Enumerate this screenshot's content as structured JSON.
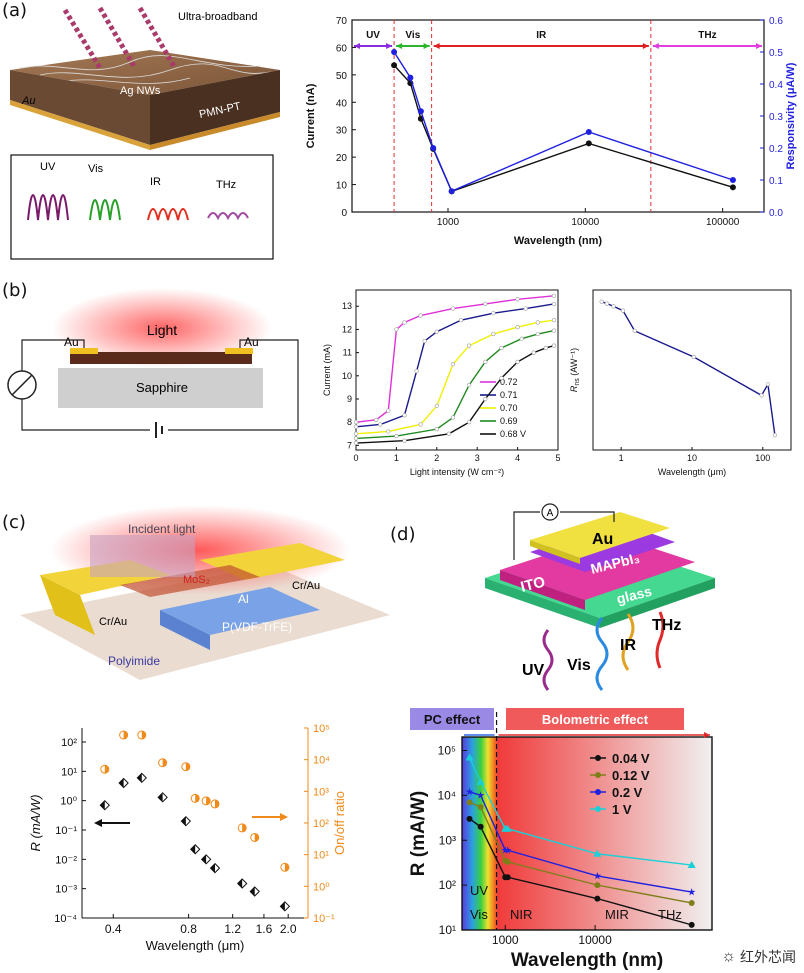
{
  "panel_labels": [
    "(a)",
    "(b)",
    "(c)",
    "(d)"
  ],
  "a_schematic": {
    "beam_label": "Ultra-broadband",
    "layer_top": "Ag NWs",
    "layer_mid": "PMN-PT",
    "layer_bottom": "Au",
    "inset_labels": [
      "UV",
      "Vis",
      "IR",
      "THz"
    ]
  },
  "b_schematic": {
    "light": "Light",
    "substrate": "Sapphire",
    "electrode_left": "Au",
    "electrode_right": "Au"
  },
  "c_schematic": {
    "incident": "Incident light",
    "channel": "MoS₂",
    "gate": "Al",
    "dielectric": "P(VDF-TrFE)",
    "substrate": "Polyimide",
    "contact_left": "Cr/Au",
    "contact_right": "Cr/Au"
  },
  "d_schematic": {
    "top": "Au",
    "perovskite": "MAPbI₃",
    "ito": "ITO",
    "glass": "glass",
    "meter": "A",
    "bands": [
      "UV",
      "Vis",
      "IR",
      "THz"
    ]
  },
  "chart_data": [
    {
      "id": "a",
      "type": "line",
      "xscale": "log",
      "xlabel": "Wavelength (nm)",
      "ylabel": "Current (nA)",
      "y2label": "Responsivity (μA/W)",
      "xlim": [
        200,
        200000
      ],
      "ylim": [
        0,
        70
      ],
      "y2lim": [
        0,
        0.6
      ],
      "xticks": [
        1000,
        10000,
        100000
      ],
      "xticklabels": [
        "1000",
        "10000",
        "100000"
      ],
      "yticks": [
        0,
        10,
        20,
        30,
        40,
        50,
        60,
        70
      ],
      "y2ticks": [
        0.0,
        0.1,
        0.2,
        0.3,
        0.4,
        0.5,
        0.6
      ],
      "y2ticklabels": [
        "0.0",
        "0.1",
        "0.2",
        "0.3",
        "0.4",
        "0.5",
        "0.6"
      ],
      "regions": [
        {
          "label": "UV",
          "from": 200,
          "to": 405,
          "color": "#8a2be2"
        },
        {
          "label": "Vis",
          "from": 405,
          "to": 760,
          "color": "#2db52d"
        },
        {
          "label": "IR",
          "from": 760,
          "to": 30000,
          "color": "#e02020"
        },
        {
          "label": "THz",
          "from": 30000,
          "to": 200000,
          "color": "#e040e0"
        }
      ],
      "dividers": [
        405,
        760,
        30000
      ],
      "series": [
        {
          "name": "Current",
          "color": "#111111",
          "axis": "left",
          "x": [
            405,
            532,
            635,
            780,
            1064,
            10600,
            118800
          ],
          "y": [
            53.5,
            47,
            34,
            23,
            7.5,
            25,
            9
          ]
        },
        {
          "name": "Responsivity",
          "color": "#1f1fe0",
          "axis": "right",
          "x": [
            405,
            532,
            635,
            780,
            1064,
            10600,
            118800
          ],
          "y": [
            0.5,
            0.42,
            0.315,
            0.2,
            0.065,
            0.25,
            0.1
          ]
        }
      ]
    },
    {
      "id": "b1",
      "type": "line",
      "xlabel": "Light intensity (W cm⁻²)",
      "ylabel": "Current (mA)",
      "xlim": [
        0,
        5
      ],
      "ylim": [
        6.8,
        13.7
      ],
      "xticks": [
        0,
        1,
        2,
        3,
        4,
        5
      ],
      "yticks": [
        7,
        8,
        9,
        10,
        11,
        12,
        13
      ],
      "legend_title_suffix": "V",
      "series": [
        {
          "name": "0.72",
          "color": "#e030d8",
          "x": [
            0,
            0.5,
            0.8,
            1.0,
            1.2,
            1.6,
            2.4,
            3.2,
            4.0,
            4.9
          ],
          "y": [
            8.0,
            8.1,
            8.5,
            12.0,
            12.3,
            12.6,
            12.9,
            13.1,
            13.3,
            13.45
          ]
        },
        {
          "name": "0.71",
          "color": "#1a1a8c",
          "x": [
            0,
            0.6,
            1.2,
            1.5,
            1.7,
            2.0,
            2.6,
            3.4,
            4.2,
            4.9
          ],
          "y": [
            7.8,
            7.9,
            8.3,
            10.2,
            11.5,
            11.9,
            12.4,
            12.7,
            12.9,
            13.1
          ]
        },
        {
          "name": "0.70",
          "color": "#f0f000",
          "x": [
            0,
            0.8,
            1.6,
            2.0,
            2.4,
            2.8,
            3.4,
            4.0,
            4.5,
            4.9
          ],
          "y": [
            7.5,
            7.6,
            7.9,
            8.7,
            10.5,
            11.3,
            11.8,
            12.1,
            12.3,
            12.4
          ]
        },
        {
          "name": "0.69",
          "color": "#1f8a1f",
          "x": [
            0,
            1.0,
            2.0,
            2.4,
            2.8,
            3.2,
            3.6,
            4.1,
            4.5,
            4.9
          ],
          "y": [
            7.3,
            7.4,
            7.7,
            8.2,
            9.6,
            10.6,
            11.2,
            11.6,
            11.8,
            11.95
          ]
        },
        {
          "name": "0.68",
          "color": "#111111",
          "x": [
            0,
            1.2,
            2.3,
            2.8,
            3.2,
            3.6,
            4.0,
            4.4,
            4.7,
            4.9
          ],
          "y": [
            7.1,
            7.2,
            7.5,
            8.0,
            9.0,
            9.9,
            10.6,
            11.0,
            11.2,
            11.3
          ]
        }
      ]
    },
    {
      "id": "b2",
      "type": "line",
      "xscale": "log",
      "yscale": "log",
      "xlabel": "Wavelength (μm)",
      "ylabel": "R",
      "ylabel_sub": "ns",
      "ylabel_unit": "(AW⁻¹)",
      "xlim": [
        0.4,
        250
      ],
      "ylim": [
        0.2,
        5
      ],
      "xticks": [
        1,
        10,
        100
      ],
      "xticklabels": [
        "1",
        "10",
        "100"
      ],
      "series": [
        {
          "name": "R_ns",
          "color": "#1a1a8c",
          "x": [
            0.53,
            0.63,
            0.78,
            1.06,
            1.55,
            10.6,
            96,
            118,
            148
          ],
          "y": [
            3.95,
            3.8,
            3.6,
            3.3,
            2.2,
            1.3,
            0.6,
            0.75,
            0.27
          ]
        }
      ]
    },
    {
      "id": "c",
      "type": "scatter",
      "xscale": "log",
      "yscale": "log",
      "xlabel": "Wavelength (μm)",
      "ylabel": "R (mA/W)",
      "y2label": "On/off ratio",
      "xlim": [
        0.3,
        2.4
      ],
      "ylim": [
        0.0001,
        300
      ],
      "y2lim": [
        0.1,
        100000
      ],
      "xticks": [
        0.4,
        0.8,
        1.2,
        1.6,
        2.0
      ],
      "xticklabels": [
        "0.4",
        "0.8",
        "1.2",
        "1.6",
        "2.0"
      ],
      "yticklabels": [
        "10⁻⁴",
        "10⁻³",
        "10⁻²",
        "10⁻¹",
        "10⁰",
        "10¹",
        "10²"
      ],
      "y2ticklabels": [
        "10⁻¹",
        "10⁰",
        "10¹",
        "10²",
        "10³",
        "10⁴",
        "10⁵"
      ],
      "series": [
        {
          "name": "R",
          "color": "#111111",
          "axis": "left",
          "x": [
            0.37,
            0.44,
            0.52,
            0.63,
            0.78,
            0.85,
            0.94,
            1.02,
            1.31,
            1.47,
            1.94
          ],
          "y": [
            0.7,
            4.0,
            6.0,
            1.3,
            0.2,
            0.022,
            0.01,
            0.005,
            0.0015,
            0.0008,
            0.00025
          ]
        },
        {
          "name": "On/off ratio",
          "color": "#f08a1a",
          "axis": "right",
          "x": [
            0.37,
            0.44,
            0.52,
            0.63,
            0.78,
            0.85,
            0.94,
            1.02,
            1.31,
            1.47,
            1.94
          ],
          "y": [
            5000,
            60000,
            60000,
            8000,
            6000,
            600,
            500,
            400,
            70,
            35,
            4
          ]
        }
      ]
    },
    {
      "id": "d",
      "type": "line",
      "xscale": "log",
      "yscale": "log",
      "xlabel": "Wavelength (nm)",
      "ylabel": "R (mA/W)",
      "xlim": [
        330,
        200000
      ],
      "ylim": [
        10,
        200000
      ],
      "xticks": [
        1000,
        10000
      ],
      "xticklabels": [
        "1000",
        "10000"
      ],
      "yticklabels": [
        "10¹",
        "10²",
        "10³",
        "10⁴",
        "10⁵"
      ],
      "regions_text": [
        "PC effect",
        "Bolometric effect"
      ],
      "band_labels": [
        "UV",
        "Vis",
        "NIR",
        "MIR",
        "THz"
      ],
      "series": [
        {
          "name": "0.04 V",
          "color": "#111111",
          "x": [
            400,
            532,
            1000,
            1064,
            10600,
            118800
          ],
          "y": [
            3000,
            2000,
            150,
            150,
            50,
            13
          ]
        },
        {
          "name": "0.12 V",
          "color": "#7f7f1a",
          "x": [
            400,
            532,
            1000,
            1064,
            10600,
            118800
          ],
          "y": [
            7000,
            5500,
            350,
            330,
            100,
            40
          ]
        },
        {
          "name": "0.2 V",
          "color": "#2020e0",
          "x": [
            400,
            532,
            1000,
            1064,
            10600,
            118800
          ],
          "y": [
            12000,
            10000,
            600,
            600,
            160,
            70
          ]
        },
        {
          "name": "1 V",
          "color": "#1ad0d8",
          "x": [
            400,
            532,
            1000,
            1064,
            10600,
            118800
          ],
          "y": [
            70000,
            20000,
            1800,
            1800,
            500,
            280
          ]
        }
      ]
    }
  ],
  "watermark": "红外芯闻"
}
